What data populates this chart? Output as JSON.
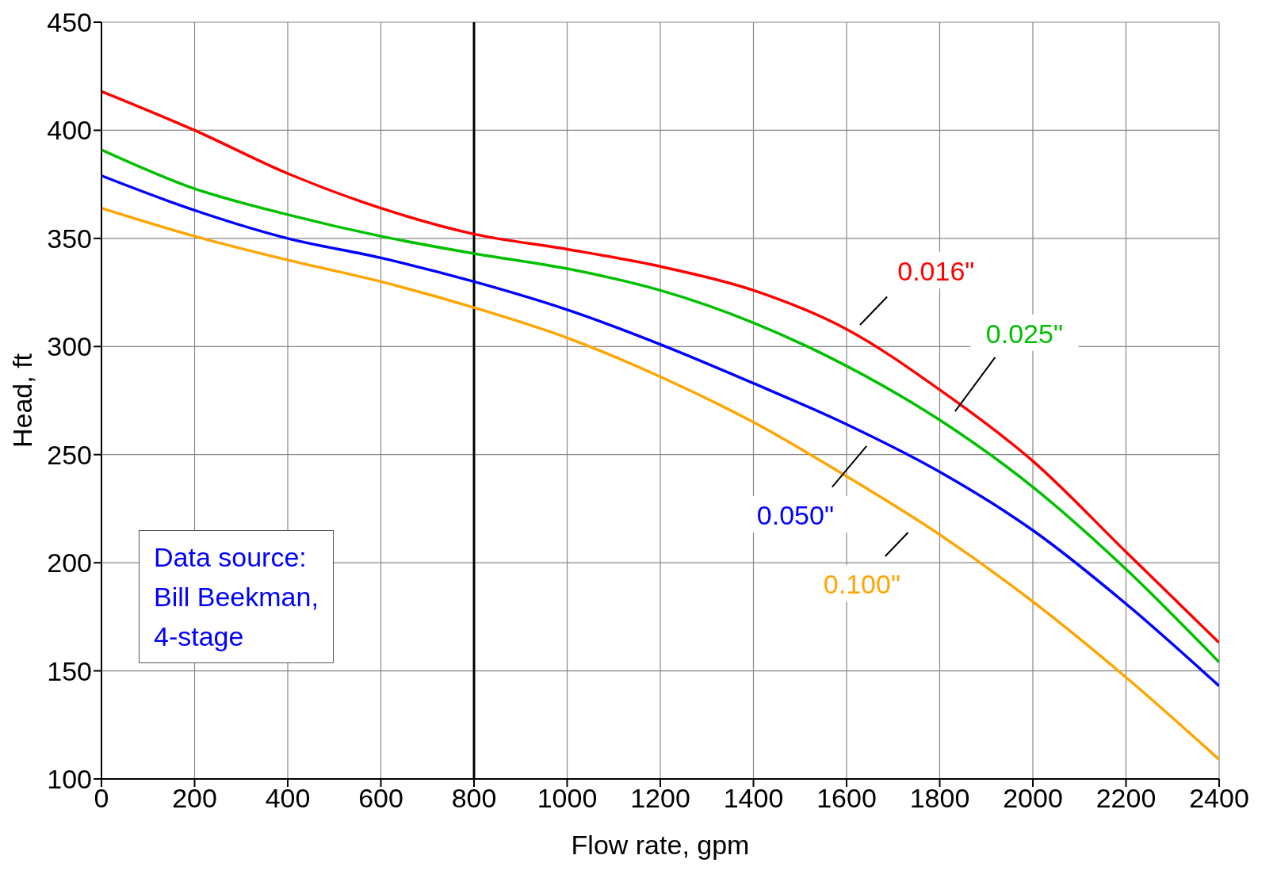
{
  "chart_data": {
    "type": "line",
    "xlabel": "Flow rate, gpm",
    "ylabel": "Head, ft",
    "x": [
      0,
      200,
      400,
      600,
      800,
      1000,
      1200,
      1400,
      1600,
      1800,
      2000,
      2200,
      2400
    ],
    "series": [
      {
        "name": "0.016\"",
        "color": "#ff0000",
        "values": [
          418,
          400,
          380,
          364,
          352,
          345,
          337,
          326,
          308,
          280,
          247,
          205,
          163
        ]
      },
      {
        "name": "0.025\"",
        "color": "#00c000",
        "values": [
          391,
          373,
          361,
          351,
          343,
          336,
          326,
          311,
          291,
          266,
          235,
          197,
          154
        ]
      },
      {
        "name": "0.050\"",
        "color": "#0000ff",
        "values": [
          379,
          363,
          350,
          341,
          330,
          317,
          301,
          283,
          264,
          242,
          215,
          181,
          143
        ]
      },
      {
        "name": "0.100\"",
        "color": "#ffa500",
        "values": [
          364,
          351,
          340,
          330,
          318,
          304,
          286,
          265,
          240,
          213,
          182,
          147,
          109
        ]
      }
    ],
    "xlim": [
      0,
      2400
    ],
    "xticks": [
      0,
      200,
      400,
      600,
      800,
      1000,
      1200,
      1400,
      1600,
      1800,
      2000,
      2200,
      2400
    ],
    "ylim": [
      100,
      450
    ],
    "yticks": [
      100,
      150,
      200,
      250,
      300,
      350,
      400,
      450
    ],
    "grid": true,
    "marker": "none",
    "line_style": "solid",
    "ref_lines": [
      {
        "axis": "x",
        "value": 800,
        "color": "#000000"
      }
    ],
    "annotations": [
      "Data source:",
      "Bill Beekman,",
      "4-stage"
    ]
  }
}
